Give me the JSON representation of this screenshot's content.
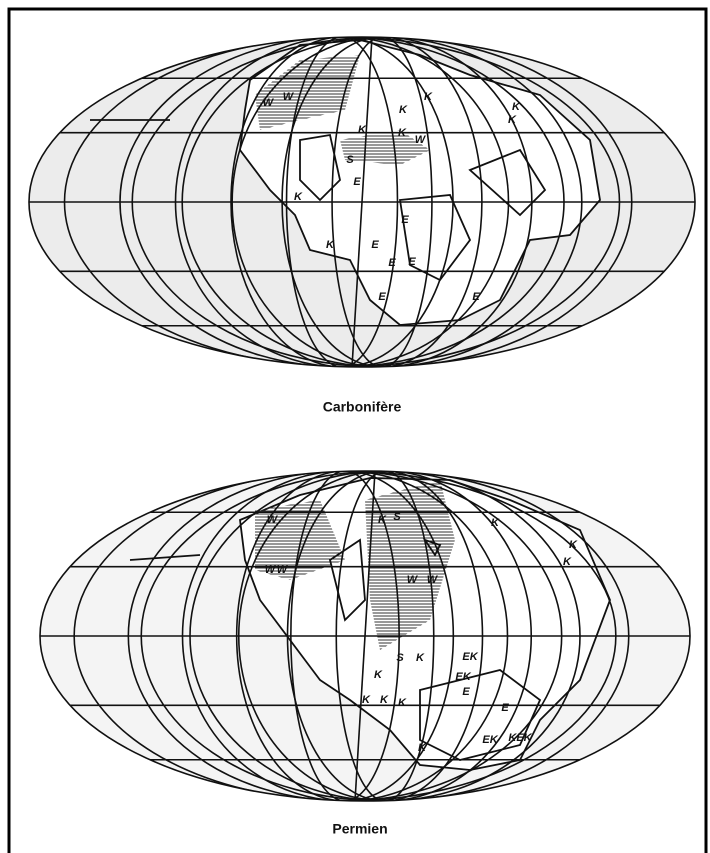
{
  "maps": [
    {
      "caption": "Carbonifère",
      "labels": [
        "W",
        "W",
        "K",
        "K",
        "K",
        "K",
        "W",
        "K",
        "S",
        "E",
        "K",
        "K",
        "E",
        "E",
        "E",
        "E",
        "E",
        "E",
        "K"
      ]
    },
    {
      "caption": "Permien",
      "labels": [
        "W",
        "W",
        "W",
        "W",
        "W",
        "K",
        "K",
        "K",
        "S",
        "K",
        "K",
        "K",
        "K",
        "K",
        "EK",
        "EK",
        "E",
        "K",
        "E",
        "EK",
        "KEK",
        "S",
        "K"
      ]
    }
  ]
}
